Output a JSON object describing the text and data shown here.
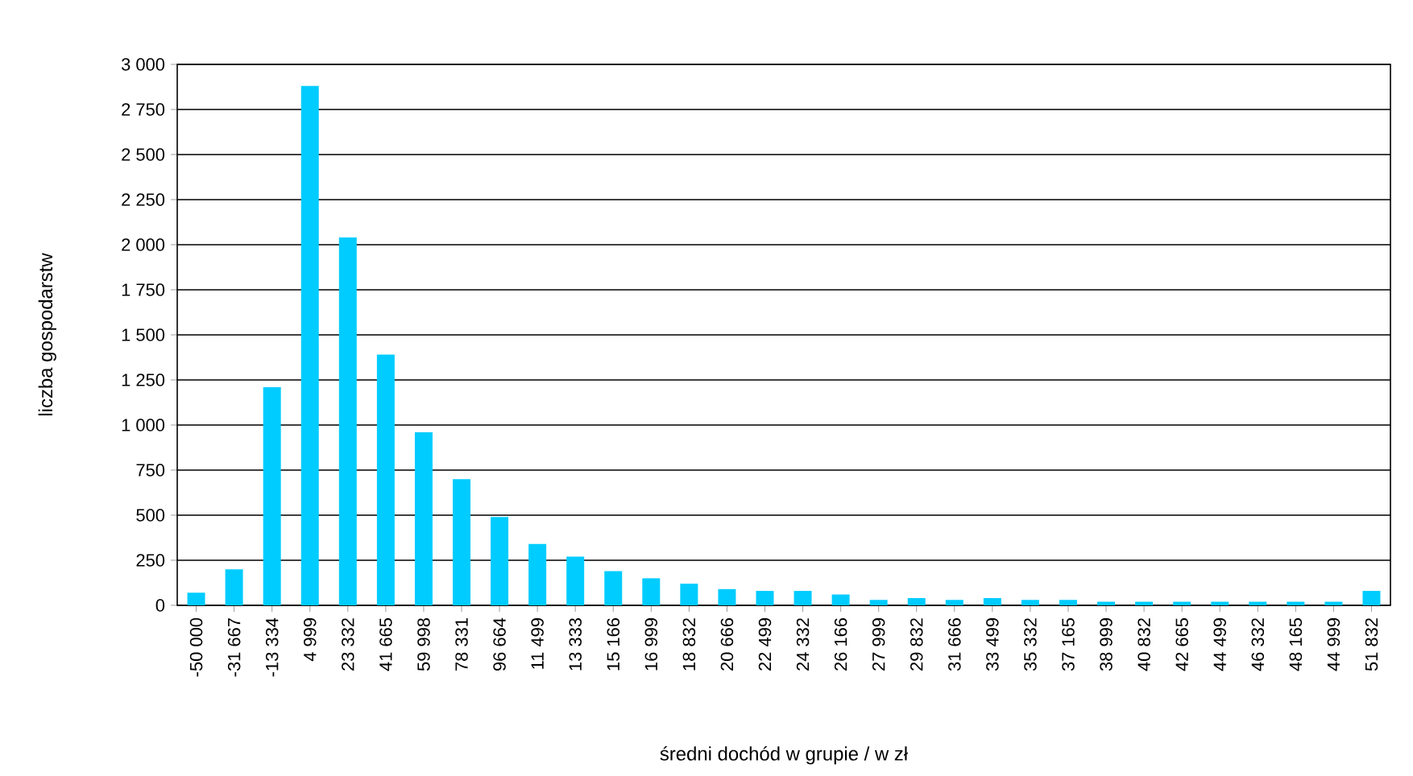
{
  "chart_data": {
    "type": "bar",
    "xlabel": "średni dochód w grupie / w zł",
    "ylabel": "liczba gospodarstw",
    "categories": [
      "-50 000",
      "-31 667",
      "-13 334",
      "4 999",
      "23 332",
      "41 665",
      "59 998",
      "78 331",
      "96 664",
      "11 499",
      "13 333",
      "15 166",
      "16 999",
      "18 832",
      "20 666",
      "22 499",
      "24 332",
      "26 166",
      "27 999",
      "29 832",
      "31 666",
      "33 499",
      "35 332",
      "37 165",
      "38 999",
      "40 832",
      "42 665",
      "44 499",
      "46 332",
      "48 165",
      "44 999",
      "51 832"
    ],
    "values": [
      70,
      200,
      1210,
      2880,
      2040,
      1390,
      960,
      700,
      490,
      340,
      270,
      190,
      150,
      120,
      90,
      80,
      80,
      60,
      30,
      40,
      30,
      40,
      30,
      30,
      20,
      20,
      20,
      20,
      20,
      20,
      20,
      80
    ],
    "color": "#00ccff",
    "ylim": [
      0,
      3000
    ],
    "yticks": [
      0,
      250,
      500,
      750,
      {
        "value": 1000,
        "label": "1 000"
      },
      {
        "value": 1250,
        "label": "1 250"
      },
      {
        "value": 1500,
        "label": "1 500"
      },
      {
        "value": 1750,
        "label": "1 750"
      },
      {
        "value": 2000,
        "label": "2 000"
      },
      {
        "value": 2250,
        "label": "2 250"
      },
      {
        "value": 2500,
        "label": "2 500"
      },
      {
        "value": 2750,
        "label": "2 750"
      },
      {
        "value": 3000,
        "label": "3 000"
      }
    ],
    "grid": "y"
  }
}
